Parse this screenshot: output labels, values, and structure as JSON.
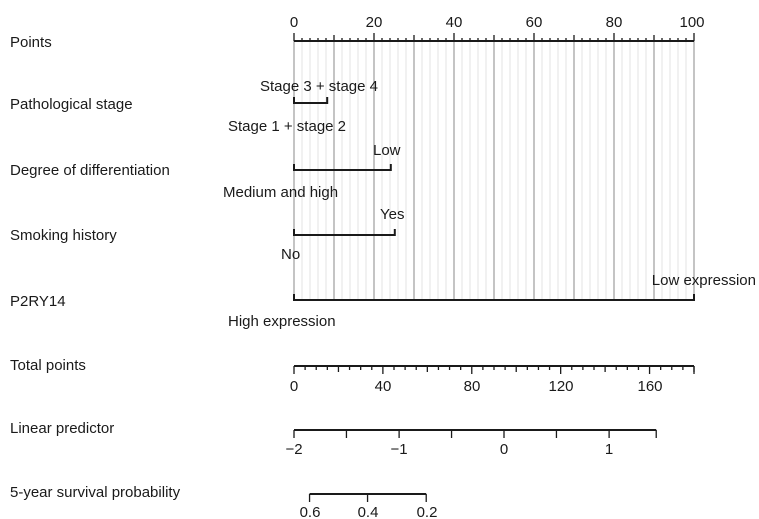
{
  "chart_data": {
    "type": "nomogram",
    "points_axis": {
      "label": "Points",
      "min": 0,
      "max": 100,
      "labeled_ticks": [
        "0",
        "20",
        "40",
        "60",
        "80",
        "100"
      ],
      "minor_step": 2,
      "major_step": 10
    },
    "variables": [
      {
        "label": "Pathological stage",
        "levels": [
          {
            "text": "Stage 3 + stage 4",
            "points": 8.3,
            "position": "above"
          },
          {
            "text": "Stage 1 + stage 2",
            "points": 0,
            "position": "below"
          }
        ]
      },
      {
        "label": "Degree of differentiation",
        "levels": [
          {
            "text": "Low",
            "points": 24.2,
            "position": "above"
          },
          {
            "text": "Medium and high",
            "points": 0,
            "position": "below"
          }
        ]
      },
      {
        "label": "Smoking history",
        "levels": [
          {
            "text": "Yes",
            "points": 25.2,
            "position": "above"
          },
          {
            "text": "No",
            "points": 0,
            "position": "below"
          }
        ]
      },
      {
        "label": "P2RY14",
        "levels": [
          {
            "text": "Low expression",
            "points": 100,
            "position": "above"
          },
          {
            "text": "High expression",
            "points": 0,
            "position": "below"
          }
        ]
      }
    ],
    "total_points": {
      "label": "Total points",
      "min": 0,
      "max": 180,
      "minor_step": 5,
      "labeled_ticks": [
        "0",
        "40",
        "80",
        "120",
        "160"
      ],
      "labeled_values": [
        0,
        40,
        80,
        120,
        160
      ]
    },
    "linear_predictor": {
      "label": "Linear predictor",
      "start_total_points": 0,
      "end_total_points": 163,
      "tick_values": [
        -2,
        -1.5,
        -1,
        -0.5,
        0,
        0.5,
        1,
        1.5
      ],
      "tick_total_points": [
        0,
        23.6,
        47.3,
        70.9,
        94.5,
        118.1,
        141.8,
        163
      ],
      "labeled_ticks": [
        {
          "text": "−2",
          "value": -2,
          "total_points": 0
        },
        {
          "text": "−1",
          "value": -1,
          "total_points": 47.3
        },
        {
          "text": "0",
          "value": 0,
          "total_points": 94.5
        },
        {
          "text": "1",
          "value": 1,
          "total_points": 141.8
        }
      ]
    },
    "survival_probability": {
      "label": "5-year survival probability",
      "start_total_points": 7,
      "end_total_points": 59.5,
      "ticks": [
        {
          "text": "0.6",
          "value": 0.6,
          "total_points": 7
        },
        {
          "text": "0.4",
          "value": 0.4,
          "total_points": 33.1
        },
        {
          "text": "0.2",
          "value": 0.2,
          "total_points": 59.5
        }
      ]
    }
  }
}
